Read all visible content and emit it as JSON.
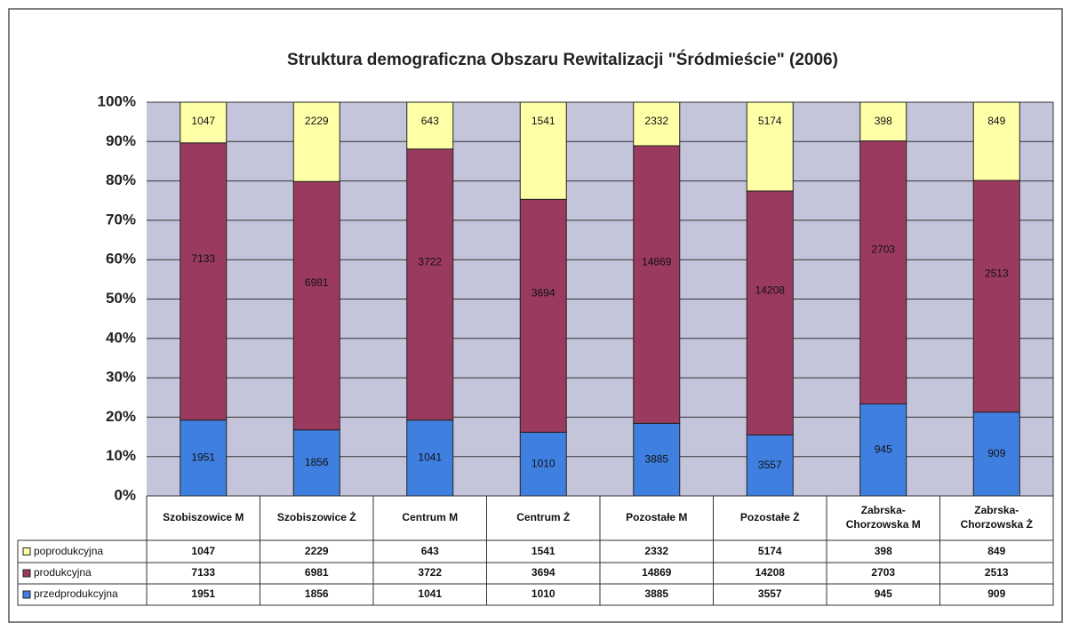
{
  "chart_data": {
    "type": "bar",
    "stacking": "percent",
    "title": "Struktura demograficzna Obszaru Rewitalizacji \"Śródmieście\" (2006)",
    "categories": [
      "Szobiszowice M",
      "Szobiszowice Ż",
      "Centrum M",
      "Centrum Ż",
      "Pozostałe M",
      "Pozostałe Ż",
      "Zabrska-Chorzowska M",
      "Zabrska-Chorzowska Ż"
    ],
    "series": [
      {
        "name": "poprodukcyjna",
        "color": "#ffffa8",
        "values": [
          1047,
          2229,
          643,
          1541,
          2332,
          5174,
          398,
          849
        ]
      },
      {
        "name": "produkcyjna",
        "color": "#9a3a5e",
        "values": [
          7133,
          6981,
          3722,
          3694,
          14869,
          14208,
          2703,
          2513
        ]
      },
      {
        "name": "przedprodukcyjna",
        "color": "#3f7fe0",
        "values": [
          1951,
          1856,
          1041,
          1010,
          3885,
          3557,
          945,
          909
        ]
      }
    ],
    "ylim": [
      0,
      100
    ],
    "yticks": [
      {
        "value": 0,
        "label": "0%"
      },
      {
        "value": 10,
        "label": "10%"
      },
      {
        "value": 20,
        "label": "20%"
      },
      {
        "value": 30,
        "label": "30%"
      },
      {
        "value": 40,
        "label": "40%"
      },
      {
        "value": 50,
        "label": "50%"
      },
      {
        "value": 60,
        "label": "60%"
      },
      {
        "value": 70,
        "label": "70%"
      },
      {
        "value": 80,
        "label": "80%"
      },
      {
        "value": 90,
        "label": "90%"
      },
      {
        "value": 100,
        "label": "100%"
      }
    ],
    "grid": true
  }
}
